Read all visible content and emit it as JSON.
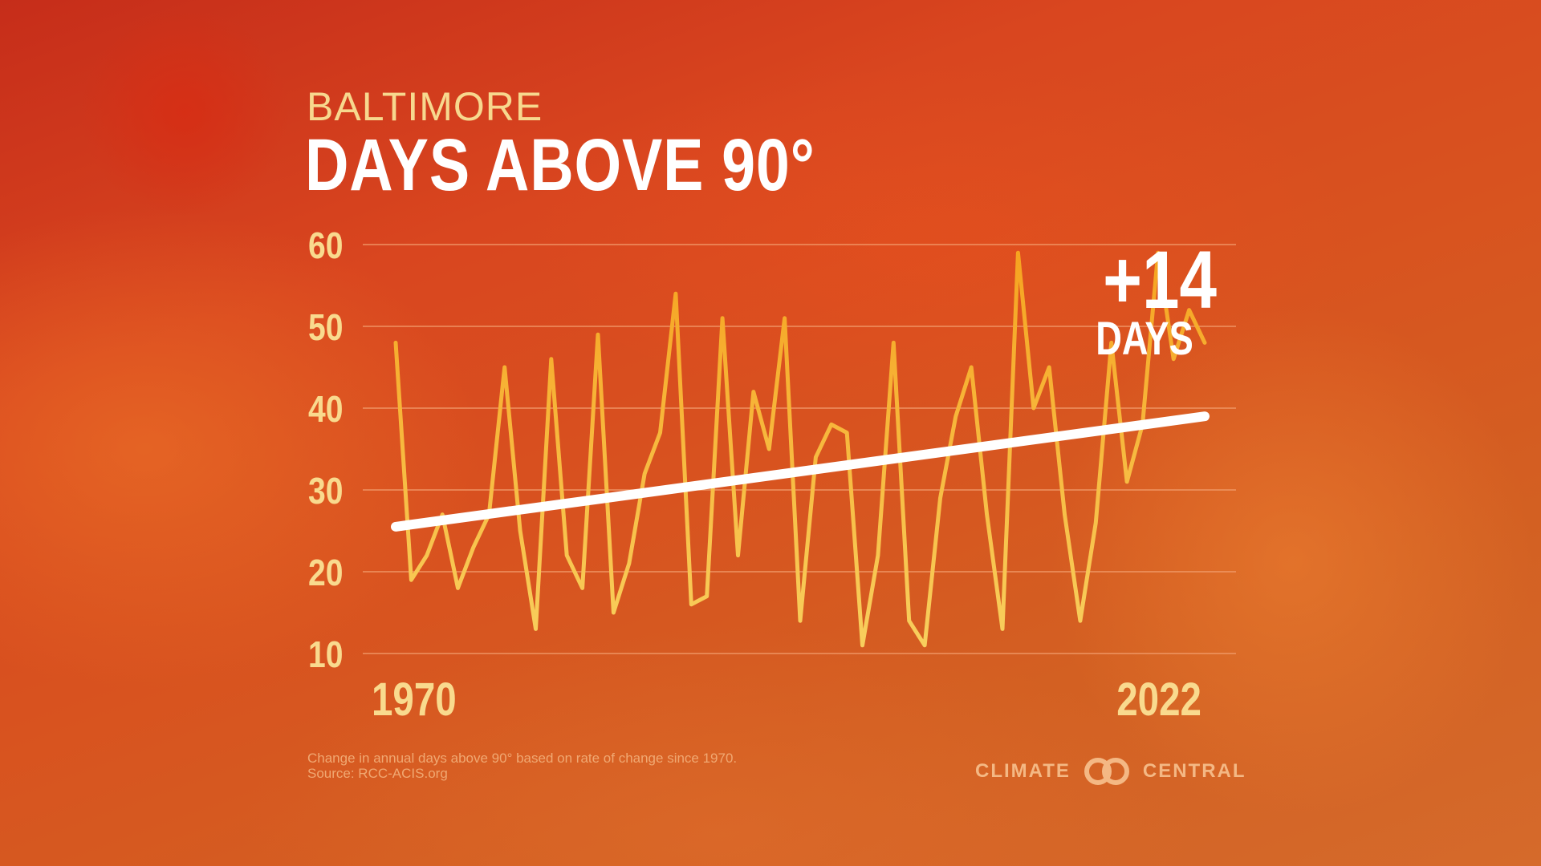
{
  "header": {
    "city": "BALTIMORE",
    "title": "DAYS ABOVE 90°"
  },
  "chart_data": {
    "type": "line",
    "title": "DAYS ABOVE 90°",
    "subtitle": "BALTIMORE",
    "x": [
      1970,
      1971,
      1972,
      1973,
      1974,
      1975,
      1976,
      1977,
      1978,
      1979,
      1980,
      1981,
      1982,
      1983,
      1984,
      1985,
      1986,
      1987,
      1988,
      1989,
      1990,
      1991,
      1992,
      1993,
      1994,
      1995,
      1996,
      1997,
      1998,
      1999,
      2000,
      2001,
      2002,
      2003,
      2004,
      2005,
      2006,
      2007,
      2008,
      2009,
      2010,
      2011,
      2012,
      2013,
      2014,
      2015,
      2016,
      2017,
      2018,
      2019,
      2020,
      2021,
      2022
    ],
    "series": [
      {
        "name": "Days above 90°",
        "values": [
          48,
          19,
          22,
          27,
          18,
          23,
          27,
          45,
          25,
          13,
          46,
          22,
          18,
          49,
          15,
          21,
          32,
          37,
          54,
          16,
          17,
          51,
          22,
          42,
          35,
          51,
          14,
          34,
          38,
          37,
          11,
          22,
          48,
          14,
          11,
          29,
          39,
          45,
          27,
          13,
          59,
          40,
          45,
          27,
          14,
          26,
          48,
          31,
          38,
          59,
          46,
          52,
          48
        ]
      },
      {
        "name": "Trend",
        "x": [
          1970,
          2022
        ],
        "values": [
          25.5,
          39
        ]
      }
    ],
    "xlabel": "",
    "ylabel": "",
    "ylim": [
      10,
      60
    ],
    "yticks": [
      60,
      50,
      40,
      30,
      20,
      10
    ],
    "xtick_labels": [
      "1970",
      "2022"
    ],
    "grid": true,
    "annotation": {
      "value": "+14",
      "unit": "DAYS"
    },
    "colors": {
      "line_top": "#f6a21e",
      "line_bottom": "#f8cf5e",
      "trend": "#ffffff",
      "grid": "#f3a070"
    }
  },
  "footer": {
    "note": "Change in annual days above 90° based on rate of change since 1970.",
    "source": "Source: RCC-ACIS.org",
    "logo_left": "CLIMATE",
    "logo_right": "CENTRAL"
  }
}
